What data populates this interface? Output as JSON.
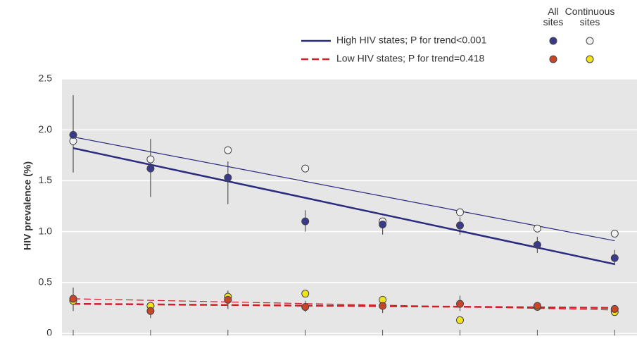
{
  "chart_data": {
    "type": "scatter",
    "y_label": "HIV prevalence (%)",
    "categories": [
      null,
      null,
      null,
      null,
      null,
      null,
      null,
      null
    ],
    "ylim": [
      0,
      2.5
    ],
    "yticks": [
      0,
      0.5,
      {
        "value": 1,
        "label": "1.0"
      },
      {
        "value": 1.5,
        "label": "1.5"
      },
      {
        "value": 2,
        "label": "2.0"
      },
      {
        "value": 2.5,
        "label": "2.5"
      }
    ],
    "grid": true,
    "legend_headers": [
      "All sites",
      "Continuous sites"
    ],
    "series": [
      {
        "name": "High HIV states; P for trend<0.001",
        "color": "#2b2a7e",
        "line_style": "solid",
        "all_sites": {
          "color": "#3a3a8c",
          "values": [
            1.95,
            1.62,
            1.53,
            1.1,
            1.07,
            1.06,
            0.87,
            0.74
          ],
          "lower": [
            1.58,
            1.34,
            1.27,
            1.0,
            0.97,
            0.97,
            0.79,
            0.67
          ],
          "upper": [
            2.34,
            1.91,
            1.69,
            1.21,
            1.13,
            1.14,
            0.95,
            0.82
          ],
          "trend": [
            1.82,
            0.68
          ]
        },
        "continuous_sites": {
          "color": "#f2f2f2",
          "values": [
            1.89,
            1.71,
            1.8,
            1.62,
            1.1,
            1.19,
            1.03,
            0.98
          ],
          "trend": [
            1.93,
            0.91
          ]
        }
      },
      {
        "name": "Low HIV states; P for trend=0.418",
        "color": "#d0202a",
        "line_style": "dashed",
        "all_sites": {
          "color": "#c8452a",
          "values": [
            0.34,
            0.22,
            0.33,
            0.26,
            0.27,
            0.29,
            0.27,
            0.24
          ],
          "lower": [
            0.22,
            0.15,
            0.24,
            0.21,
            0.2,
            0.22,
            0.24,
            0.19
          ],
          "upper": [
            0.45,
            0.31,
            0.42,
            0.32,
            0.34,
            0.37,
            0.3,
            0.27
          ],
          "trend": [
            0.29,
            0.25
          ]
        },
        "continuous_sites": {
          "color": "#f2e21c",
          "values": [
            0.32,
            0.27,
            0.36,
            0.39,
            0.33,
            0.13,
            0.26,
            0.21
          ],
          "trend": [
            0.34,
            0.23
          ]
        }
      }
    ]
  }
}
